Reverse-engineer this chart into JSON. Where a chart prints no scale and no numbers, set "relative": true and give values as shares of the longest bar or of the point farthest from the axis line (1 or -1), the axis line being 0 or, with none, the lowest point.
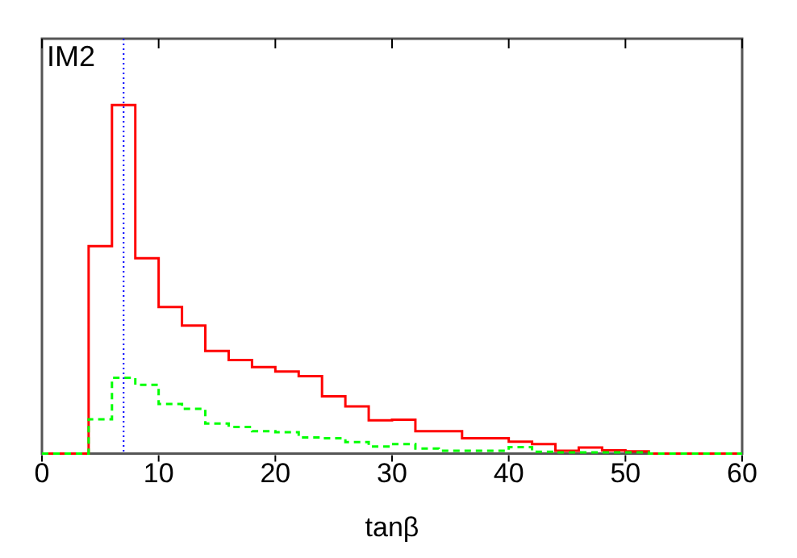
{
  "chart_data": {
    "type": "step",
    "xlabel": "tanβ",
    "annotations": [
      "IM2"
    ],
    "relative": true,
    "x": [
      0,
      2,
      4,
      6,
      8,
      10,
      12,
      14,
      16,
      18,
      20,
      22,
      24,
      26,
      28,
      30,
      32,
      34,
      36,
      38,
      40,
      42,
      44,
      46,
      48,
      50,
      52,
      54,
      56,
      58,
      60
    ],
    "series": [
      {
        "color": "#ff0000",
        "line_style": "solid",
        "values": [
          0,
          0,
          0.595,
          1,
          0.56,
          0.42,
          0.367,
          0.294,
          0.268,
          0.248,
          0.235,
          0.222,
          0.164,
          0.135,
          0.095,
          0.097,
          0.064,
          0.064,
          0.044,
          0.044,
          0.034,
          0.027,
          0.008,
          0.017,
          0.009,
          0.006,
          0,
          0,
          0,
          0,
          0
        ]
      },
      {
        "color": "#00ff00",
        "line_style": "dashed",
        "values": [
          0,
          0,
          0.098,
          0.217,
          0.197,
          0.142,
          0.128,
          0.086,
          0.076,
          0.064,
          0.061,
          0.046,
          0.044,
          0.033,
          0.02,
          0.027,
          0.014,
          0.008,
          0.008,
          0.008,
          0.018,
          0.005,
          0.003,
          0.003,
          0.003,
          0.003,
          0,
          0,
          0,
          0,
          0
        ]
      }
    ],
    "xlim": [
      0,
      60
    ],
    "xticks": [
      0,
      10,
      20,
      30,
      40,
      50,
      60
    ],
    "ref_lines": [
      {
        "axis": "x",
        "value": 7,
        "color": "#0000ff",
        "line_style": "dotted"
      }
    ],
    "grid": false,
    "legend": false
  }
}
